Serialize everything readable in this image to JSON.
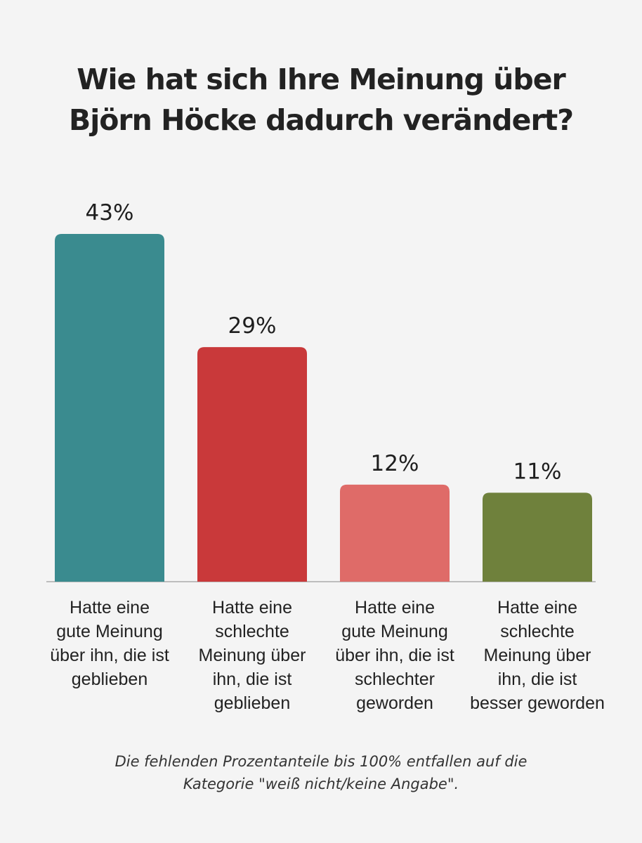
{
  "title_lines": [
    "Wie hat sich Ihre Meinung über",
    "Björn Höcke dadurch verändert?"
  ],
  "footnote_lines": [
    "Die fehlenden Prozentanteile bis 100% entfallen auf die",
    "Kategorie \"weiß nicht/keine Angabe\"."
  ],
  "chart_data": {
    "type": "bar",
    "title": "Wie hat sich Ihre Meinung über Björn Höcke dadurch verändert?",
    "categories": [
      "Hatte eine gute Meinung über ihn, die ist geblieben",
      "Hatte eine schlechte Meinung über ihn, die ist geblieben",
      "Hatte eine gute Meinung über ihn, die ist schlechter geworden",
      "Hatte eine schlechte Meinung über ihn, die ist besser geworden"
    ],
    "category_label_lines": [
      [
        "Hatte eine",
        "gute Meinung",
        "über ihn, die ist",
        "geblieben"
      ],
      [
        "Hatte eine",
        "schlechte",
        "Meinung über",
        "ihn, die ist",
        "geblieben"
      ],
      [
        "Hatte eine",
        "gute Meinung",
        "über ihn, die ist",
        "schlechter",
        "geworden"
      ],
      [
        "Hatte eine",
        "schlechte",
        "Meinung über",
        "ihn, die ist",
        "besser geworden"
      ]
    ],
    "values": [
      43,
      29,
      12,
      11
    ],
    "value_labels": [
      "43%",
      "29%",
      "12%",
      "11%"
    ],
    "unit": "%",
    "colors": [
      "#3a8b8f",
      "#c9393a",
      "#df6b68",
      "#6f813c"
    ],
    "ylim": [
      0,
      43
    ],
    "grid": false,
    "legend": "none",
    "footnote": "Die fehlenden Prozentanteile bis 100% entfallen auf die Kategorie \"weiß nicht/keine Angabe\"."
  }
}
